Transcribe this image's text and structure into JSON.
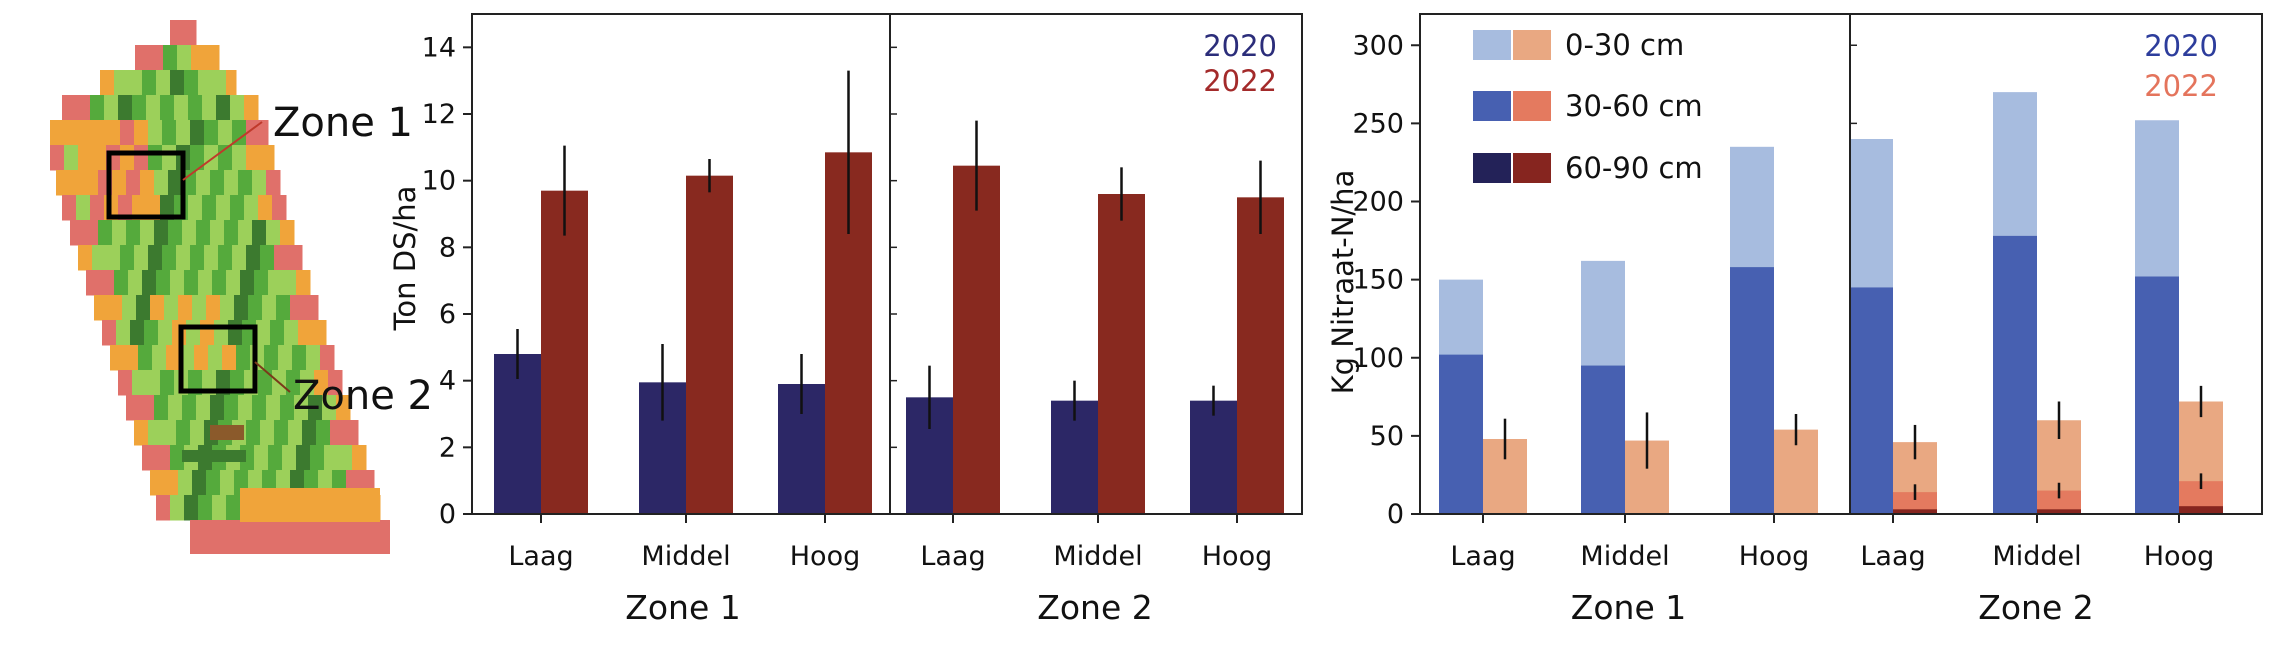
{
  "map": {
    "zone_labels": [
      "Zone 1",
      "Zone 2"
    ],
    "colors": {
      "red": "#e0706a",
      "orange": "#f0a43a",
      "light_green": "#9cd05a",
      "green": "#55aa3c",
      "dark": "#3c7a2f",
      "brown": "#8b5a2b"
    }
  },
  "chart_data": [
    {
      "type": "bar",
      "ylabel": "Ton DS/ha",
      "ylim": [
        0,
        15
      ],
      "yticks": [
        0,
        2,
        4,
        6,
        8,
        10,
        12,
        14
      ],
      "categories": [
        "Laag",
        "Middel",
        "Hoog"
      ],
      "groups": [
        "Zone 1",
        "Zone 2"
      ],
      "legend": {
        "placement": "top-right",
        "entries": [
          {
            "name": "2020",
            "color": "#2b2d7a"
          },
          {
            "name": "2022",
            "color": "#a32a2a"
          }
        ]
      },
      "series": [
        {
          "name": "2020",
          "color": "#2c2766",
          "values": [
            [
              4.8,
              3.95,
              3.9
            ],
            [
              3.5,
              3.4,
              3.4
            ]
          ],
          "errors": [
            [
              0.75,
              1.15,
              0.9
            ],
            [
              0.95,
              0.6,
              0.45
            ]
          ]
        },
        {
          "name": "2022",
          "color": "#88291f",
          "values": [
            [
              9.7,
              10.15,
              10.85
            ],
            [
              10.45,
              9.6,
              9.5
            ]
          ],
          "errors": [
            [
              1.35,
              0.5,
              2.45
            ],
            [
              1.35,
              0.8,
              1.1
            ]
          ]
        }
      ]
    },
    {
      "type": "bar",
      "stacked": true,
      "ylabel": "Kg Nitraat-N/ha",
      "ylim": [
        0,
        320
      ],
      "yticks": [
        0,
        50,
        100,
        150,
        200,
        250,
        300
      ],
      "categories": [
        "Laag",
        "Middel",
        "Hoog"
      ],
      "groups": [
        "Zone 1",
        "Zone 2"
      ],
      "year_legend": {
        "placement": "top-right",
        "entries": [
          {
            "name": "2020",
            "color": "#2d3d9c"
          },
          {
            "name": "2022",
            "color": "#e4745c"
          }
        ]
      },
      "depth_legend": {
        "placement": "top-left",
        "entries": [
          {
            "name": "0-30 cm",
            "colors": [
              "#a7bcdf",
              "#e9a882"
            ]
          },
          {
            "name": "30-60 cm",
            "colors": [
              "#4760b1",
              "#e47a5f"
            ]
          },
          {
            "name": "60-90 cm",
            "colors": [
              "#232258",
              "#86251f"
            ]
          }
        ]
      },
      "series": [
        {
          "name": "2020",
          "colors": [
            "#a7bcdf",
            "#4760b1",
            "#232258"
          ],
          "totals": [
            [
              150,
              162,
              235
            ],
            [
              240,
              270,
              252
            ]
          ],
          "mid": [
            [
              102,
              95,
              158
            ],
            [
              145,
              178,
              152
            ]
          ],
          "deep": [
            [
              0,
              0,
              0
            ],
            [
              0,
              0,
              0
            ]
          ],
          "errors": [
            [
              0,
              0,
              0
            ],
            [
              0,
              0,
              0
            ]
          ]
        },
        {
          "name": "2022",
          "colors": [
            "#e9a882",
            "#e47a5f",
            "#86251f"
          ],
          "totals": [
            [
              48,
              47,
              54
            ],
            [
              46,
              60,
              72
            ]
          ],
          "mid": [
            [
              0,
              0,
              0
            ],
            [
              14,
              15,
              21
            ]
          ],
          "deep": [
            [
              0,
              0,
              0
            ],
            [
              3,
              3,
              5
            ]
          ],
          "errors": [
            [
              13,
              18,
              10
            ],
            [
              11,
              12,
              10
            ]
          ]
        }
      ]
    }
  ]
}
